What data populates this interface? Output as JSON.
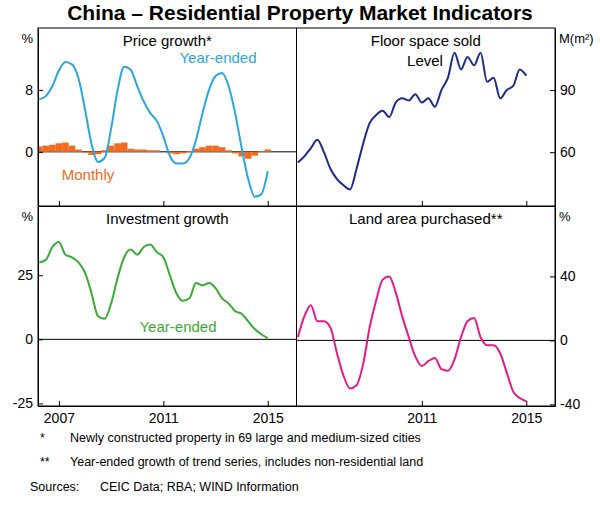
{
  "title": "China – Residential Property Market Indicators",
  "notes": [
    {
      "mark": "*",
      "text": "Newly constructed property in 69 large and medium-sized cities"
    },
    {
      "mark": "**",
      "text": "Year-ended growth of trend series, includes non-residential land"
    }
  ],
  "sources": {
    "label": "Sources:",
    "text": "CEIC Data; RBA; WIND Information"
  },
  "chart_data": [
    {
      "type": "line",
      "title": "Price growth*",
      "ylabel": "%",
      "x": [
        2006.75,
        2007,
        2007.25,
        2007.5,
        2007.75,
        2008,
        2008.25,
        2008.5,
        2008.75,
        2009,
        2009.25,
        2009.5,
        2009.75,
        2010,
        2010.25,
        2010.5,
        2010.75,
        2011,
        2011.25,
        2011.5,
        2011.75,
        2012,
        2012.25,
        2012.5,
        2012.75,
        2013,
        2013.25,
        2013.5,
        2013.75,
        2014,
        2014.25,
        2014.5,
        2014.75,
        2015,
        2015.25,
        2015.5
      ],
      "series": [
        {
          "name": "Monthly",
          "type": "bar",
          "color": "#f26b21",
          "values": [
            0.7,
            0.8,
            0.9,
            1.1,
            1.2,
            0.8,
            0.3,
            -0.1,
            -0.4,
            -0.3,
            0.2,
            0.8,
            1.1,
            1.2,
            0.4,
            0.3,
            0.3,
            0.2,
            0.2,
            0.0,
            -0.2,
            -0.3,
            -0.2,
            0.1,
            0.4,
            0.6,
            0.8,
            0.8,
            0.6,
            0.2,
            -0.2,
            -0.6,
            -0.9,
            -0.5,
            0.1,
            0.3
          ]
        },
        {
          "name": "Year-ended",
          "type": "line",
          "color": "#2aa7df",
          "values": [
            6.8,
            7.2,
            8.5,
            10.5,
            11.6,
            11.3,
            9.5,
            5.5,
            1.0,
            -1.3,
            -0.8,
            3.0,
            8.0,
            11.0,
            10.6,
            8.5,
            6.5,
            5.0,
            4.0,
            2.0,
            -0.5,
            -1.5,
            -1.5,
            -0.8,
            1.5,
            5.0,
            8.0,
            9.8,
            10.2,
            8.5,
            5.0,
            0.5,
            -3.5,
            -5.8,
            -5.5,
            -2.5
          ]
        }
      ],
      "xlim": [
        2006.7,
        2016.6
      ],
      "xticks": [
        2007.5,
        2011.5,
        2015.5
      ],
      "ylim": [
        -7,
        16
      ],
      "yticks": [
        0,
        8
      ],
      "tick_labels": "y"
    },
    {
      "type": "line",
      "title": "Floor space sold",
      "ylabel": "M(m²)",
      "x": [
        2006.75,
        2007,
        2007.25,
        2007.5,
        2007.75,
        2008,
        2008.25,
        2008.5,
        2008.75,
        2009,
        2009.25,
        2009.5,
        2009.75,
        2010,
        2010.25,
        2010.5,
        2010.75,
        2011,
        2011.25,
        2011.5,
        2011.75,
        2012,
        2012.25,
        2012.5,
        2012.75,
        2013,
        2013.25,
        2013.5,
        2013.75,
        2014,
        2014.25,
        2014.5,
        2014.75,
        2015,
        2015.25,
        2015.5
      ],
      "series": [
        {
          "name": "Level",
          "color": "#1f2a8a",
          "values": [
            55,
            58,
            62,
            66,
            60,
            52,
            47,
            44,
            42,
            52,
            64,
            74,
            78,
            80,
            77,
            84,
            86,
            85,
            88,
            84,
            86,
            82,
            90,
            96,
            108,
            100,
            106,
            102,
            108,
            94,
            96,
            86,
            90,
            92,
            100,
            97
          ]
        }
      ],
      "xlim": [
        2006.7,
        2016.6
      ],
      "xticks": [
        2011.5,
        2015.5
      ],
      "ylim": [
        34,
        120
      ],
      "yticks": [
        60,
        90
      ],
      "tick_labels": "y"
    },
    {
      "type": "line",
      "title": "Investment growth",
      "ylabel": "%",
      "x": [
        2006.75,
        2007,
        2007.25,
        2007.5,
        2007.75,
        2008,
        2008.25,
        2008.5,
        2008.75,
        2009,
        2009.25,
        2009.5,
        2009.75,
        2010,
        2010.25,
        2010.5,
        2010.75,
        2011,
        2011.25,
        2011.5,
        2011.75,
        2012,
        2012.25,
        2012.5,
        2012.75,
        2013,
        2013.25,
        2013.5,
        2013.75,
        2014,
        2014.25,
        2014.5,
        2014.75,
        2015,
        2015.25,
        2015.5
      ],
      "series": [
        {
          "name": "Year-ended",
          "color": "#3aaa35",
          "values": [
            30,
            31,
            36,
            38,
            33,
            32,
            30,
            26,
            18,
            9,
            8,
            14,
            24,
            32,
            35,
            33,
            36,
            37,
            34,
            32,
            25,
            18,
            15,
            16,
            22,
            21,
            22,
            20,
            16,
            14,
            11,
            10,
            7,
            4,
            2,
            0.5
          ]
        }
      ],
      "xlim": [
        2006.7,
        2016.6
      ],
      "xticks": [
        {
          "value": 2007.5,
          "label": "2007"
        },
        {
          "value": 2011.5,
          "label": "2011"
        },
        {
          "value": 2015.5,
          "label": "2015"
        }
      ],
      "ylim": [
        -26,
        52
      ],
      "yticks": [
        -25,
        0,
        25
      ]
    },
    {
      "type": "line",
      "title": "Land area purchased**",
      "ylabel": "%",
      "x": [
        2006.75,
        2007,
        2007.25,
        2007.5,
        2007.75,
        2008,
        2008.25,
        2008.5,
        2008.75,
        2009,
        2009.25,
        2009.5,
        2009.75,
        2010,
        2010.25,
        2010.5,
        2010.75,
        2011,
        2011.25,
        2011.5,
        2011.75,
        2012,
        2012.25,
        2012.5,
        2012.75,
        2013,
        2013.25,
        2013.5,
        2013.75,
        2014,
        2014.25,
        2014.5,
        2014.75,
        2015,
        2015.25,
        2015.5
      ],
      "series": [
        {
          "color": "#e6198a",
          "values": [
            2,
            15,
            22,
            12,
            12,
            8,
            -8,
            -22,
            -30,
            -28,
            -15,
            8,
            25,
            38,
            40,
            30,
            15,
            2,
            -10,
            -16,
            -13,
            -11,
            -18,
            -19,
            -12,
            2,
            12,
            14,
            2,
            -3,
            -3,
            -8,
            -20,
            -32,
            -36,
            -38
          ]
        }
      ],
      "xlim": [
        2006.7,
        2016.6
      ],
      "xticks": [
        {
          "value": 2011.5,
          "label": "2011"
        },
        {
          "value": 2015.5,
          "label": "2015"
        }
      ],
      "ylim": [
        -41,
        84
      ],
      "yticks": [
        -40,
        0,
        40
      ]
    }
  ]
}
